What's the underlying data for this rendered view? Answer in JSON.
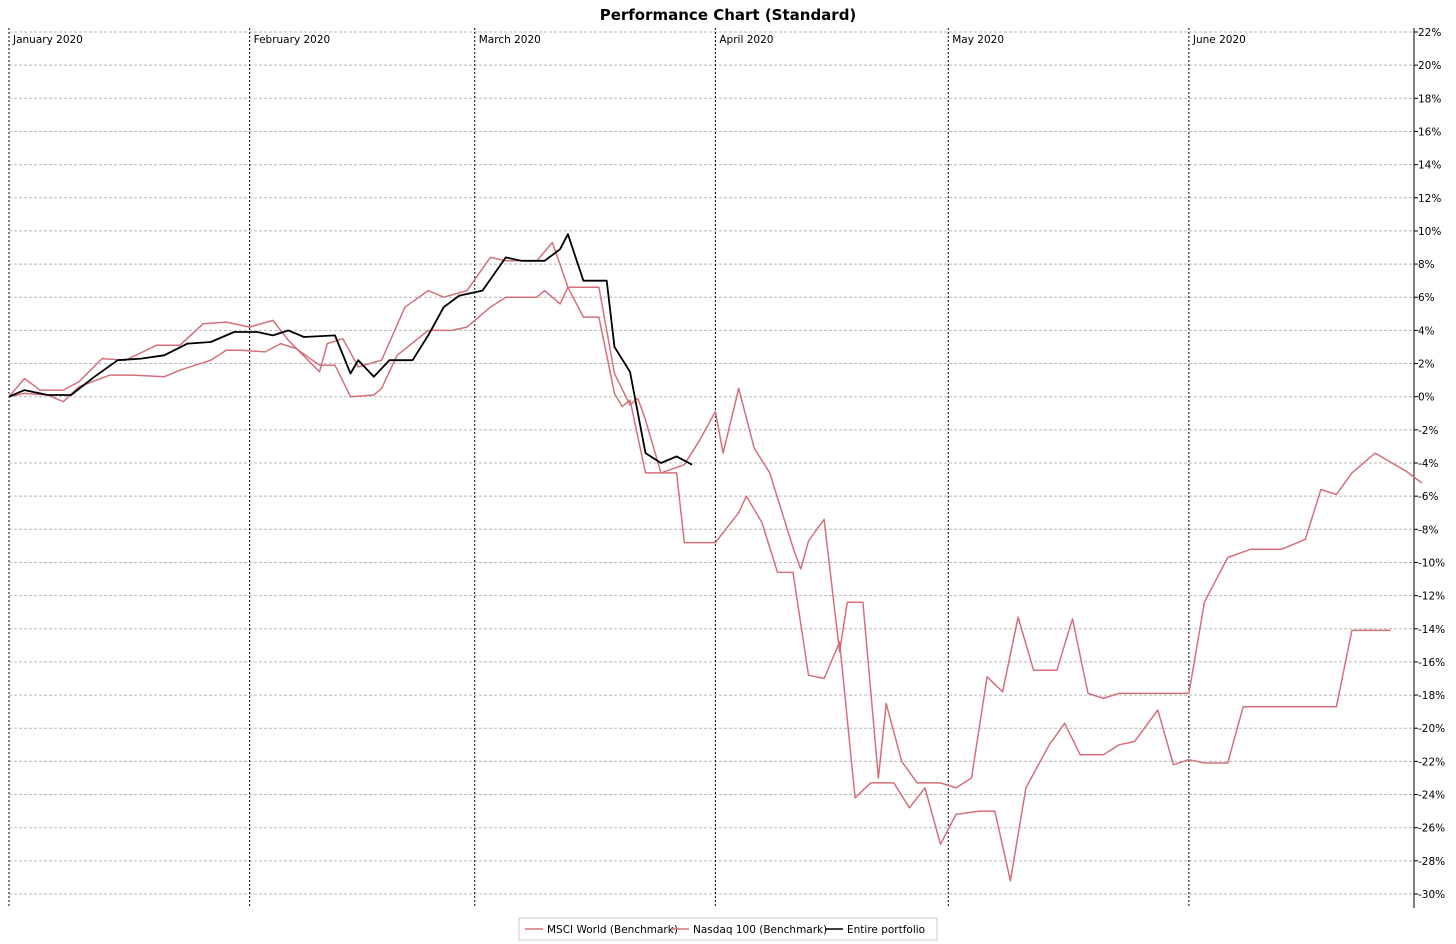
{
  "chart_data": {
    "type": "line",
    "title": "Performance Chart (Standard)",
    "xlabel": "",
    "ylabel": "",
    "x_range": [
      "2020-01-01",
      "2020-06-30"
    ],
    "ylim": [
      -30,
      22
    ],
    "y_ticks": [
      22,
      20,
      18,
      16,
      14,
      12,
      10,
      8,
      6,
      4,
      2,
      0,
      -2,
      -4,
      -6,
      -8,
      -10,
      -12,
      -14,
      -16,
      -18,
      -20,
      -22,
      -24,
      -26,
      -28,
      -30
    ],
    "y_tick_labels": [
      "22%",
      "20%",
      "18%",
      "16%",
      "14%",
      "12%",
      "10%",
      "8%",
      "6%",
      "4%",
      "2%",
      "0%",
      "-2%",
      "-4%",
      "-6%",
      "-8%",
      "-10%",
      "-12%",
      "-14%",
      "-16%",
      "-18%",
      "-20%",
      "-22%",
      "-24%",
      "-26%",
      "-28%",
      "-30%"
    ],
    "months": [
      {
        "label": "January 2020",
        "date": "2020-01-01"
      },
      {
        "label": "February 2020",
        "date": "2020-02-01"
      },
      {
        "label": "March 2020",
        "date": "2020-03-01"
      },
      {
        "label": "April 2020",
        "date": "2020-04-01"
      },
      {
        "label": "May 2020",
        "date": "2020-05-01"
      },
      {
        "label": "June 2020",
        "date": "2020-06-01"
      }
    ],
    "grid": true,
    "legend_position": "bottom-center",
    "series": [
      {
        "name": "MSCI World (Benchmark)",
        "color": "#d4707a",
        "points": [
          [
            "2020-01-01",
            0
          ],
          [
            "2020-01-03",
            0.2
          ],
          [
            "2020-01-06",
            0.1
          ],
          [
            "2020-01-08",
            -0.3
          ],
          [
            "2020-01-10",
            0.6
          ],
          [
            "2020-01-14",
            1.3
          ],
          [
            "2020-01-17",
            1.3
          ],
          [
            "2020-01-21",
            1.2
          ],
          [
            "2020-01-23",
            1.6
          ],
          [
            "2020-01-27",
            2.2
          ],
          [
            "2020-01-29",
            2.8
          ],
          [
            "2020-01-31",
            2.8
          ],
          [
            "2020-02-03",
            2.7
          ],
          [
            "2020-02-05",
            3.2
          ],
          [
            "2020-02-07",
            2.9
          ],
          [
            "2020-02-10",
            1.9
          ],
          [
            "2020-02-12",
            1.9
          ],
          [
            "2020-02-14",
            0
          ],
          [
            "2020-02-17",
            0.1
          ],
          [
            "2020-02-18",
            0.5
          ],
          [
            "2020-02-20",
            2.5
          ],
          [
            "2020-02-24",
            4
          ],
          [
            "2020-02-27",
            4
          ],
          [
            "2020-02-29",
            4.2
          ],
          [
            "2020-03-03",
            5.4
          ],
          [
            "2020-03-05",
            6
          ],
          [
            "2020-03-09",
            6
          ],
          [
            "2020-03-10",
            6.4
          ],
          [
            "2020-03-12",
            5.6
          ],
          [
            "2020-03-13",
            6.6
          ],
          [
            "2020-03-15",
            4.8
          ],
          [
            "2020-03-17",
            4.8
          ],
          [
            "2020-03-19",
            0.2
          ],
          [
            "2020-03-20",
            -0.6
          ],
          [
            "2020-03-21",
            -0.2
          ],
          [
            "2020-03-23",
            -4.6
          ],
          [
            "2020-03-25",
            -4.6
          ],
          [
            "2020-03-27",
            -4.6
          ],
          [
            "2020-03-28",
            -8.8
          ],
          [
            "2020-04-01",
            -8.8
          ],
          [
            "2020-04-04",
            -7
          ],
          [
            "2020-04-05",
            -6
          ],
          [
            "2020-04-07",
            -7.6
          ],
          [
            "2020-04-09",
            -10.6
          ],
          [
            "2020-04-11",
            -10.6
          ],
          [
            "2020-04-13",
            -16.8
          ],
          [
            "2020-04-15",
            -17
          ],
          [
            "2020-04-17",
            -14.8
          ],
          [
            "2020-04-19",
            -24.2
          ],
          [
            "2020-04-21",
            -23.3
          ],
          [
            "2020-04-24",
            -23.3
          ],
          [
            "2020-04-26",
            -24.8
          ],
          [
            "2020-04-28",
            -23.6
          ],
          [
            "2020-04-30",
            -27
          ],
          [
            "2020-05-02",
            -25.2
          ],
          [
            "2020-05-05",
            -25
          ],
          [
            "2020-05-07",
            -25
          ],
          [
            "2020-05-09",
            -29.2
          ],
          [
            "2020-05-11",
            -23.6
          ],
          [
            "2020-05-14",
            -21
          ],
          [
            "2020-05-16",
            -19.7
          ],
          [
            "2020-05-18",
            -21.6
          ],
          [
            "2020-05-21",
            -21.6
          ],
          [
            "2020-05-23",
            -21
          ],
          [
            "2020-05-25",
            -20.8
          ],
          [
            "2020-05-28",
            -18.9
          ],
          [
            "2020-05-30",
            -22.2
          ],
          [
            "2020-06-01",
            -21.9
          ],
          [
            "2020-06-03",
            -22.1
          ],
          [
            "2020-06-06",
            -22.1
          ],
          [
            "2020-06-08",
            -18.7
          ],
          [
            "2020-06-13",
            -18.7
          ],
          [
            "2020-06-17",
            -18.7
          ],
          [
            "2020-06-20",
            -18.7
          ],
          [
            "2020-06-22",
            -14.1
          ],
          [
            "2020-06-27",
            -14.1
          ]
        ]
      },
      {
        "name": "Nasdaq 100 (Benchmark)",
        "color": "#d4707a",
        "points": [
          [
            "2020-01-01",
            0
          ],
          [
            "2020-01-03",
            1.1
          ],
          [
            "2020-01-05",
            0.4
          ],
          [
            "2020-01-08",
            0.4
          ],
          [
            "2020-01-10",
            0.9
          ],
          [
            "2020-01-13",
            2.3
          ],
          [
            "2020-01-16",
            2.2
          ],
          [
            "2020-01-20",
            3.1
          ],
          [
            "2020-01-23",
            3.1
          ],
          [
            "2020-01-26",
            4.4
          ],
          [
            "2020-01-29",
            4.5
          ],
          [
            "2020-02-01",
            4.2
          ],
          [
            "2020-02-04",
            4.6
          ],
          [
            "2020-02-06",
            3.4
          ],
          [
            "2020-02-10",
            1.5
          ],
          [
            "2020-02-11",
            3.2
          ],
          [
            "2020-02-13",
            3.5
          ],
          [
            "2020-02-15",
            1.8
          ],
          [
            "2020-02-18",
            2.2
          ],
          [
            "2020-02-21",
            5.4
          ],
          [
            "2020-02-24",
            6.4
          ],
          [
            "2020-02-26",
            6
          ],
          [
            "2020-02-29",
            6.4
          ],
          [
            "2020-03-03",
            8.4
          ],
          [
            "2020-03-05",
            8.2
          ],
          [
            "2020-03-09",
            8.2
          ],
          [
            "2020-03-11",
            9.3
          ],
          [
            "2020-03-13",
            6.6
          ],
          [
            "2020-03-17",
            6.6
          ],
          [
            "2020-03-19",
            1.4
          ],
          [
            "2020-03-21",
            -0.5
          ],
          [
            "2020-03-22",
            -0.1
          ],
          [
            "2020-03-23",
            -1.4
          ],
          [
            "2020-03-25",
            -4.6
          ],
          [
            "2020-03-28",
            -4.1
          ],
          [
            "2020-03-30",
            -2.6
          ],
          [
            "2020-04-01",
            -0.9
          ],
          [
            "2020-04-02",
            -3.4
          ],
          [
            "2020-04-04",
            0.5
          ],
          [
            "2020-04-06",
            -3.1
          ],
          [
            "2020-04-08",
            -4.6
          ],
          [
            "2020-04-11",
            -9.1
          ],
          [
            "2020-04-12",
            -10.4
          ],
          [
            "2020-04-13",
            -8.7
          ],
          [
            "2020-04-15",
            -7.4
          ],
          [
            "2020-04-17",
            -15.4
          ],
          [
            "2020-04-18",
            -12.4
          ],
          [
            "2020-04-20",
            -12.4
          ],
          [
            "2020-04-22",
            -23
          ],
          [
            "2020-04-23",
            -18.5
          ],
          [
            "2020-04-25",
            -22
          ],
          [
            "2020-04-27",
            -23.3
          ],
          [
            "2020-04-30",
            -23.3
          ],
          [
            "2020-05-02",
            -23.6
          ],
          [
            "2020-05-04",
            -23
          ],
          [
            "2020-05-06",
            -16.9
          ],
          [
            "2020-05-08",
            -17.8
          ],
          [
            "2020-05-10",
            -13.3
          ],
          [
            "2020-05-12",
            -16.5
          ],
          [
            "2020-05-15",
            -16.5
          ],
          [
            "2020-05-17",
            -13.4
          ],
          [
            "2020-05-19",
            -17.9
          ],
          [
            "2020-05-21",
            -18.2
          ],
          [
            "2020-05-23",
            -17.9
          ],
          [
            "2020-06-01",
            -17.9
          ],
          [
            "2020-06-03",
            -12.4
          ],
          [
            "2020-06-06",
            -9.7
          ],
          [
            "2020-06-09",
            -9.2
          ],
          [
            "2020-06-13",
            -9.2
          ],
          [
            "2020-06-16",
            -8.6
          ],
          [
            "2020-06-18",
            -5.6
          ],
          [
            "2020-06-20",
            -5.9
          ],
          [
            "2020-06-22",
            -4.6
          ],
          [
            "2020-06-25",
            -3.4
          ],
          [
            "2020-06-29",
            -4.5
          ],
          [
            "2020-07-01",
            -5.2
          ]
        ]
      },
      {
        "name": "Entire portfolio",
        "color": "#000000",
        "points": [
          [
            "2020-01-01",
            0
          ],
          [
            "2020-01-03",
            0.4
          ],
          [
            "2020-01-06",
            0.1
          ],
          [
            "2020-01-09",
            0.1
          ],
          [
            "2020-01-12",
            1.2
          ],
          [
            "2020-01-15",
            2.2
          ],
          [
            "2020-01-18",
            2.3
          ],
          [
            "2020-01-21",
            2.5
          ],
          [
            "2020-01-24",
            3.2
          ],
          [
            "2020-01-27",
            3.3
          ],
          [
            "2020-01-30",
            3.9
          ],
          [
            "2020-02-02",
            3.9
          ],
          [
            "2020-02-04",
            3.7
          ],
          [
            "2020-02-06",
            4
          ],
          [
            "2020-02-08",
            3.6
          ],
          [
            "2020-02-12",
            3.7
          ],
          [
            "2020-02-14",
            1.4
          ],
          [
            "2020-02-15",
            2.2
          ],
          [
            "2020-02-17",
            1.2
          ],
          [
            "2020-02-19",
            2.2
          ],
          [
            "2020-02-22",
            2.2
          ],
          [
            "2020-02-24",
            3.7
          ],
          [
            "2020-02-26",
            5.4
          ],
          [
            "2020-02-28",
            6.1
          ],
          [
            "2020-03-02",
            6.4
          ],
          [
            "2020-03-05",
            8.4
          ],
          [
            "2020-03-07",
            8.2
          ],
          [
            "2020-03-10",
            8.2
          ],
          [
            "2020-03-12",
            8.9
          ],
          [
            "2020-03-13",
            9.8
          ],
          [
            "2020-03-15",
            7
          ],
          [
            "2020-03-18",
            7
          ],
          [
            "2020-03-19",
            3
          ],
          [
            "2020-03-21",
            1.5
          ],
          [
            "2020-03-23",
            -3.4
          ],
          [
            "2020-03-25",
            -4
          ],
          [
            "2020-03-27",
            -3.6
          ],
          [
            "2020-03-29",
            -4.1
          ]
        ]
      }
    ]
  },
  "legend": {
    "items": [
      {
        "label": "MSCI World (Benchmark)",
        "color": "#d4707a"
      },
      {
        "label": "Nasdaq 100 (Benchmark)",
        "color": "#d4707a"
      },
      {
        "label": "Entire portfolio",
        "color": "#000000"
      }
    ]
  }
}
